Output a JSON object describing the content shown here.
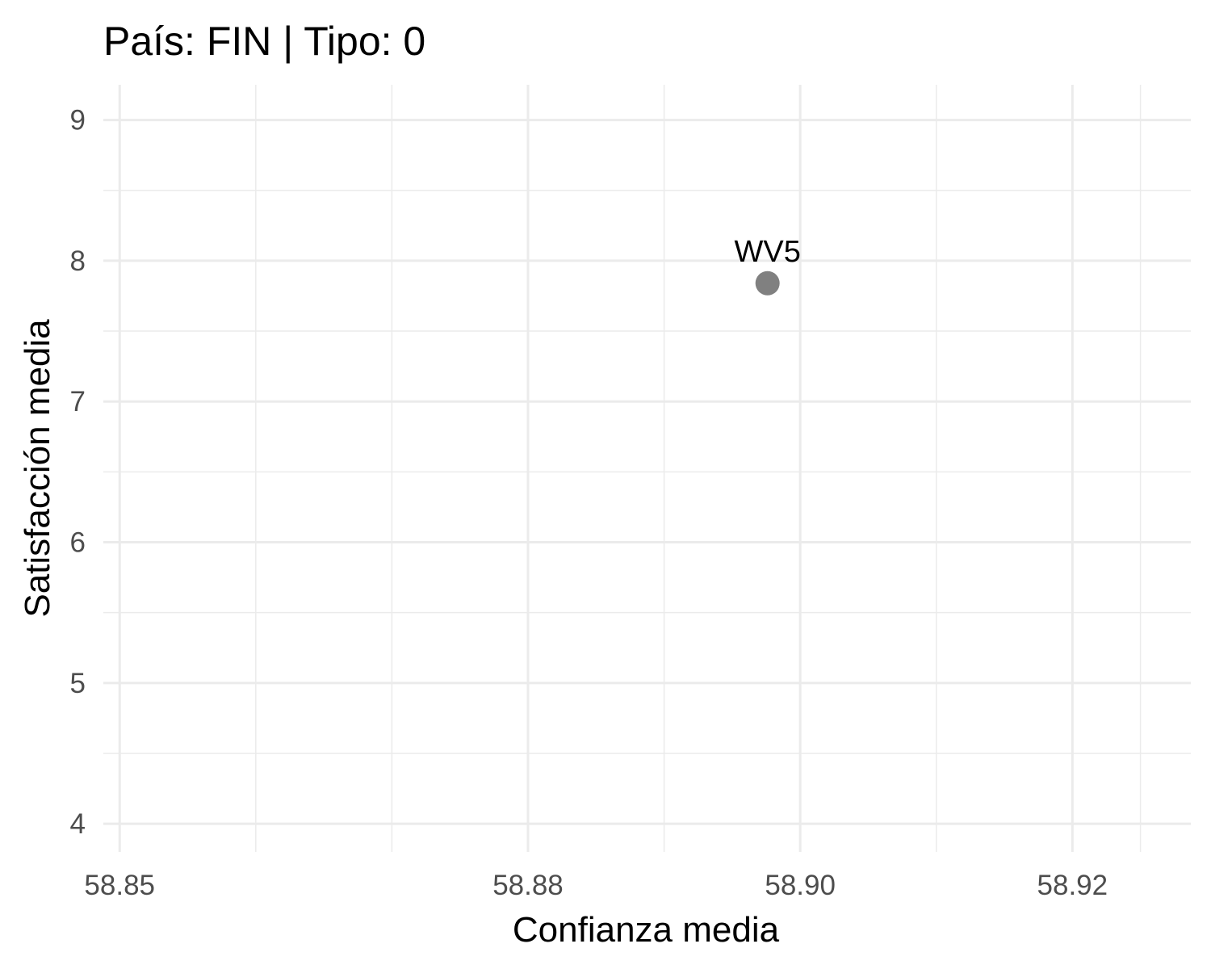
{
  "chart_data": {
    "type": "scatter",
    "title": "País: FIN | Tipo: 0",
    "xlabel": "Confianza media",
    "ylabel": "Satisfacción media",
    "xlim": [
      58.8488,
      58.9287
    ],
    "ylim": [
      3.8,
      9.25
    ],
    "x_ticks": [
      58.85,
      58.88,
      58.9,
      58.92
    ],
    "x_tick_labels": [
      "58.85",
      "58.88",
      "58.90",
      "58.92"
    ],
    "x_minor": [
      58.86,
      58.87,
      58.89,
      58.91,
      58.925
    ],
    "y_ticks": [
      4,
      5,
      6,
      7,
      8,
      9
    ],
    "y_tick_labels": [
      "4",
      "5",
      "6",
      "7",
      "8",
      "9"
    ],
    "y_minor": [
      4.5,
      5.5,
      6.5,
      7.5,
      8.5
    ],
    "grid": true,
    "points": [
      {
        "x": 58.8976,
        "y": 7.84,
        "label": "WV5",
        "color": "#808080"
      }
    ]
  }
}
